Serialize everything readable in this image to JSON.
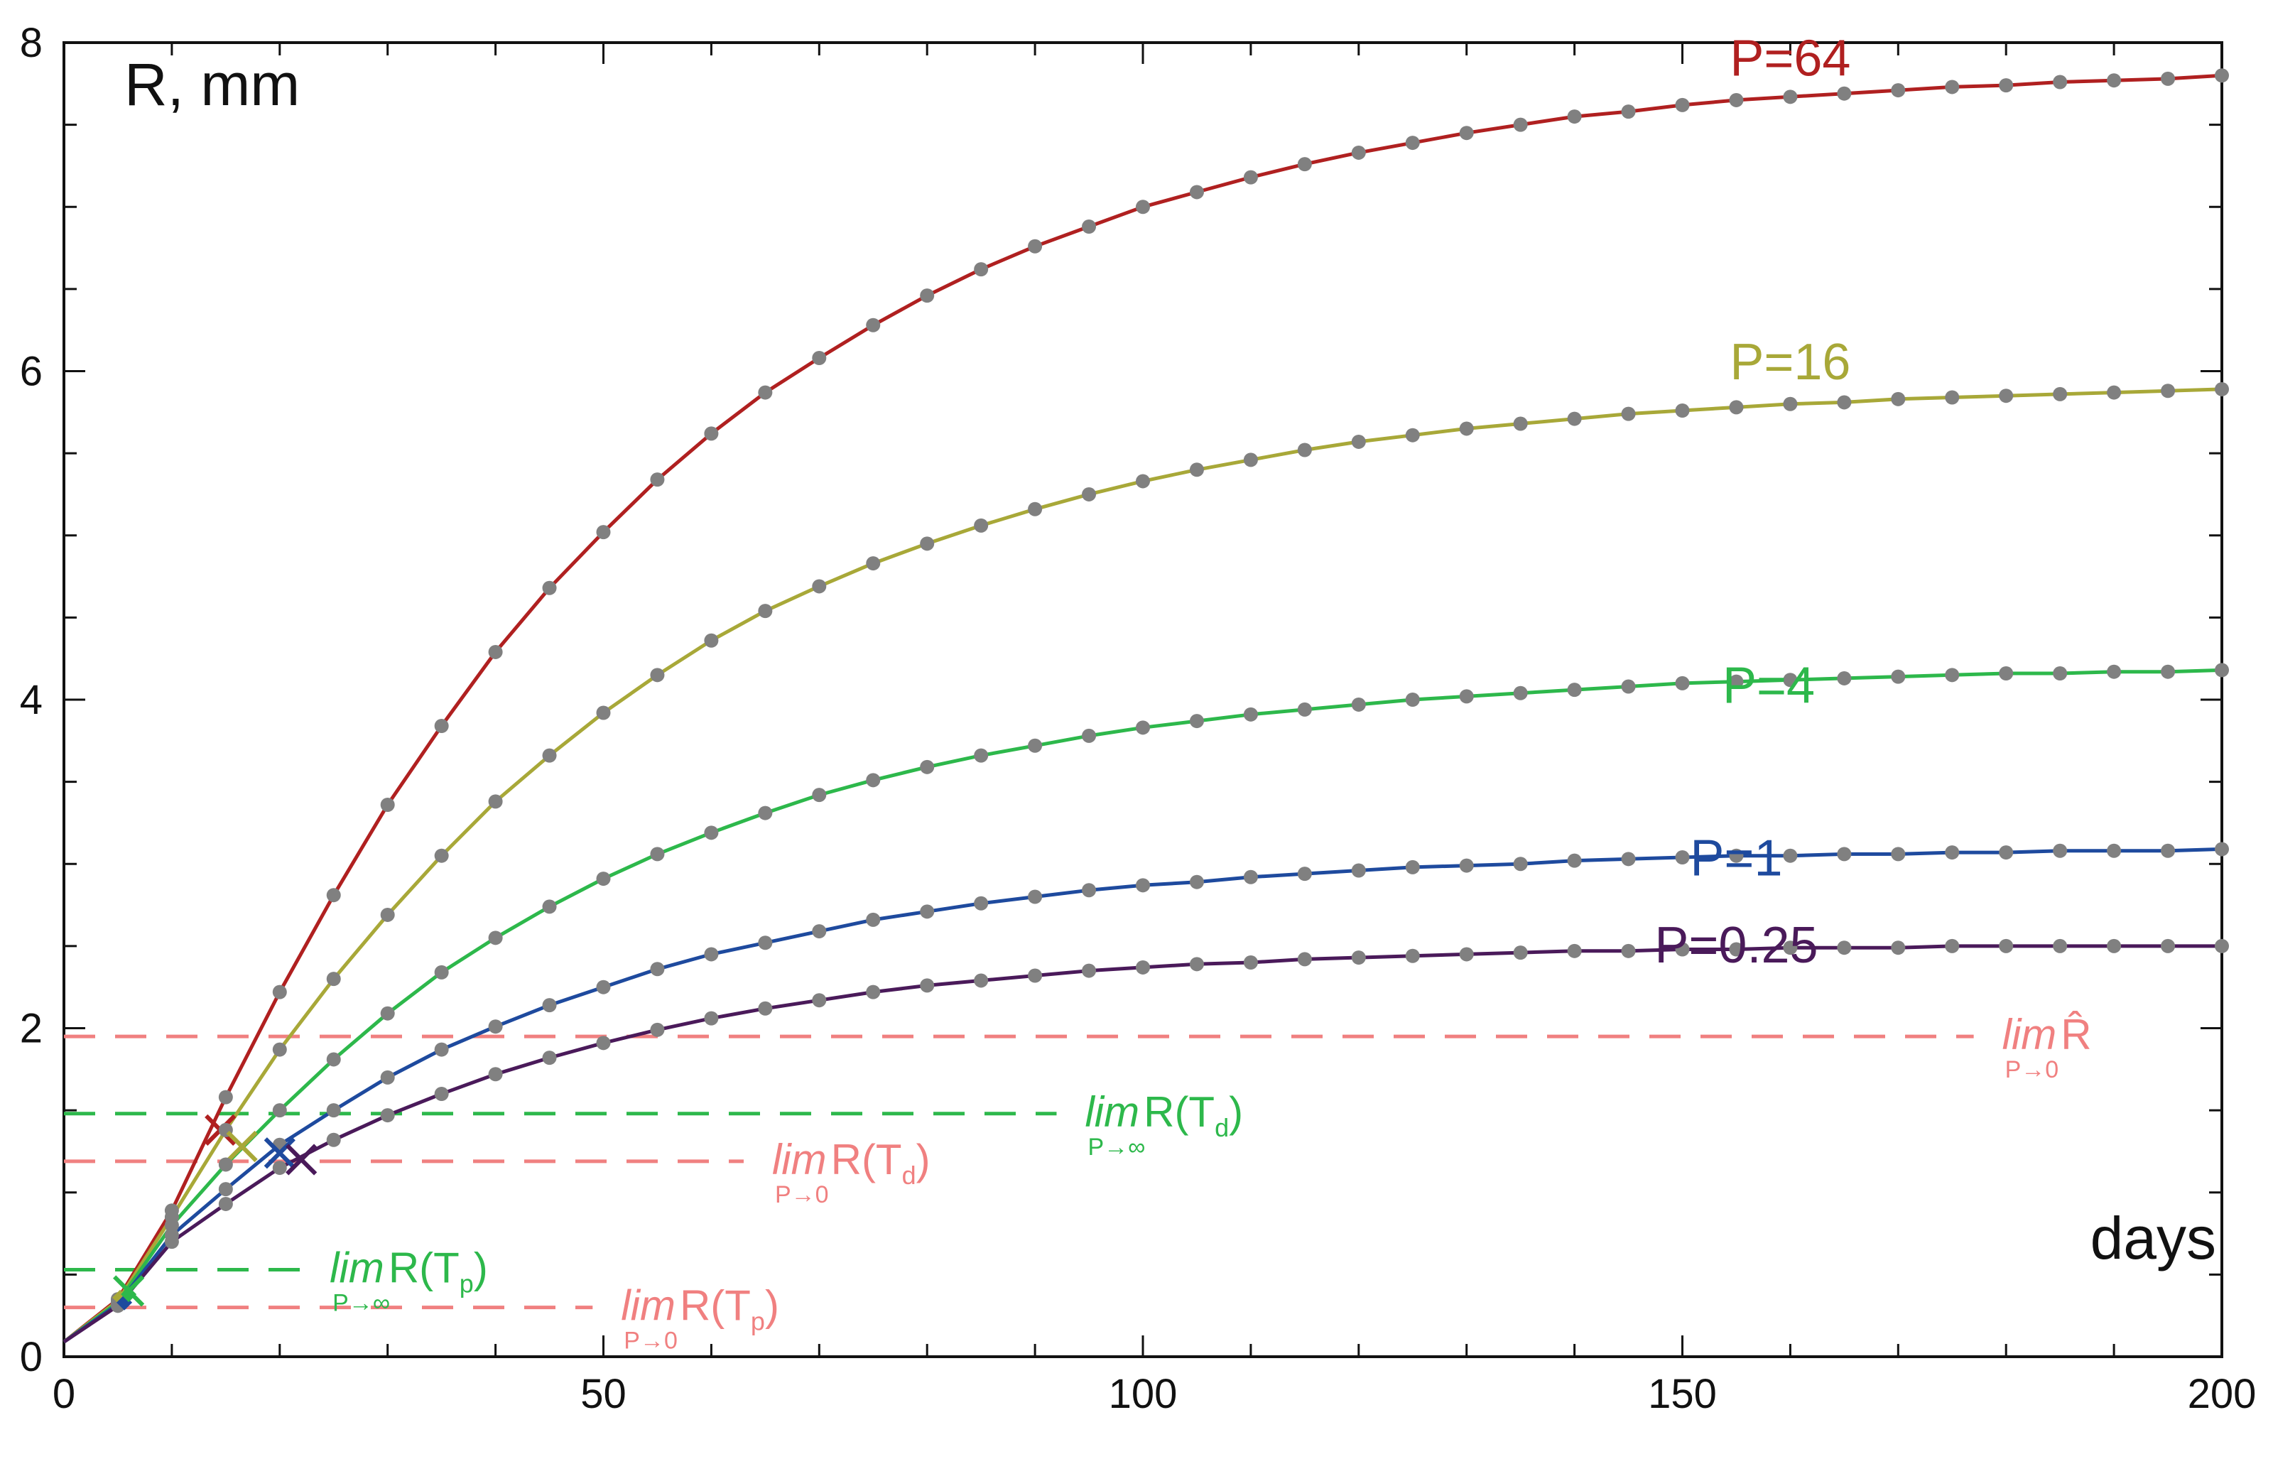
{
  "chart_data": {
    "type": "line",
    "title": "",
    "ylabel": "R, mm",
    "xlabel": "days",
    "xlim": [
      0,
      200
    ],
    "ylim": [
      0,
      8
    ],
    "x_ticks": [
      0,
      50,
      100,
      150,
      200
    ],
    "y_ticks": [
      0,
      2,
      4,
      6,
      8
    ],
    "x_tick_labels": [
      "0",
      "50",
      "100",
      "150",
      "200"
    ],
    "y_tick_labels": [
      "0",
      "2",
      "4",
      "6",
      "8"
    ],
    "marker_color": "#808080",
    "x": [
      0,
      5,
      10,
      15,
      20,
      25,
      30,
      35,
      40,
      45,
      50,
      55,
      60,
      65,
      70,
      75,
      80,
      85,
      90,
      95,
      100,
      105,
      110,
      115,
      120,
      125,
      130,
      135,
      140,
      145,
      150,
      155,
      160,
      165,
      170,
      175,
      180,
      185,
      190,
      195,
      200
    ],
    "series": [
      {
        "name": "P=64",
        "label": "P=64",
        "color": "#b02020",
        "values": [
          0.09,
          0.35,
          0.89,
          1.58,
          2.22,
          2.81,
          3.36,
          3.84,
          4.29,
          4.68,
          5.02,
          5.34,
          5.62,
          5.87,
          6.08,
          6.28,
          6.46,
          6.62,
          6.76,
          6.88,
          7.0,
          7.09,
          7.18,
          7.26,
          7.33,
          7.39,
          7.45,
          7.5,
          7.55,
          7.58,
          7.62,
          7.65,
          7.67,
          7.69,
          7.71,
          7.73,
          7.74,
          7.76,
          7.77,
          7.78,
          7.8
        ],
        "cross": {
          "x": 14.5,
          "y": 1.38
        }
      },
      {
        "name": "P=16",
        "label": "P=16",
        "color": "#a8a838",
        "values": [
          0.09,
          0.34,
          0.85,
          1.38,
          1.87,
          2.3,
          2.69,
          3.05,
          3.38,
          3.66,
          3.92,
          4.15,
          4.36,
          4.54,
          4.69,
          4.83,
          4.95,
          5.06,
          5.16,
          5.25,
          5.33,
          5.4,
          5.46,
          5.52,
          5.57,
          5.61,
          5.65,
          5.68,
          5.71,
          5.74,
          5.76,
          5.78,
          5.8,
          5.81,
          5.83,
          5.84,
          5.85,
          5.86,
          5.87,
          5.88,
          5.89
        ],
        "cross": {
          "x": 16.5,
          "y": 1.28
        }
      },
      {
        "name": "P=4",
        "label": "P=4",
        "color": "#2db84b",
        "values": [
          0.09,
          0.33,
          0.8,
          1.17,
          1.5,
          1.81,
          2.09,
          2.34,
          2.55,
          2.74,
          2.91,
          3.06,
          3.19,
          3.31,
          3.42,
          3.51,
          3.59,
          3.66,
          3.72,
          3.78,
          3.83,
          3.87,
          3.91,
          3.94,
          3.97,
          4.0,
          4.02,
          4.04,
          4.06,
          4.08,
          4.1,
          4.11,
          4.12,
          4.13,
          4.14,
          4.15,
          4.16,
          4.16,
          4.17,
          4.17,
          4.18
        ],
        "cross": {
          "x": 6,
          "y": 0.4
        }
      },
      {
        "name": "P=1",
        "label": "P=1",
        "color": "#1e4a9e",
        "values": [
          0.09,
          0.32,
          0.74,
          1.02,
          1.29,
          1.5,
          1.7,
          1.87,
          2.01,
          2.14,
          2.25,
          2.36,
          2.45,
          2.52,
          2.59,
          2.66,
          2.71,
          2.76,
          2.8,
          2.84,
          2.87,
          2.89,
          2.92,
          2.94,
          2.96,
          2.98,
          2.99,
          3.0,
          3.02,
          3.03,
          3.04,
          3.05,
          3.05,
          3.06,
          3.06,
          3.07,
          3.07,
          3.08,
          3.08,
          3.08,
          3.09
        ],
        "cross": {
          "x": 20,
          "y": 1.24
        }
      },
      {
        "name": "P=0.25",
        "label": "P=0.25",
        "color": "#4a1a5a",
        "values": [
          0.09,
          0.31,
          0.7,
          0.93,
          1.15,
          1.32,
          1.47,
          1.6,
          1.72,
          1.82,
          1.91,
          1.99,
          2.06,
          2.12,
          2.17,
          2.22,
          2.26,
          2.29,
          2.32,
          2.35,
          2.37,
          2.39,
          2.4,
          2.42,
          2.43,
          2.44,
          2.45,
          2.46,
          2.47,
          2.47,
          2.48,
          2.48,
          2.49,
          2.49,
          2.49,
          2.5,
          2.5,
          2.5,
          2.5,
          2.5,
          2.5
        ],
        "cross": {
          "x": 22,
          "y": 1.2
        }
      }
    ],
    "reference_lines": [
      {
        "name": "lim-p0-rhat",
        "y": 1.95,
        "x_end": 177,
        "color": "#f08080",
        "lim": "lim",
        "sub": "P→0",
        "main": "R̂",
        "tsub": ""
      },
      {
        "name": "lim-pinf-td",
        "y": 1.48,
        "x_end": 92,
        "color": "#2db84b",
        "lim": "lim",
        "sub": "P→∞",
        "main": "R(T",
        "tsub": "d",
        "close": ")"
      },
      {
        "name": "lim-p0-td",
        "y": 1.19,
        "x_end": 63,
        "color": "#f08080",
        "lim": "lim",
        "sub": "P→0",
        "main": "R(T",
        "tsub": "d",
        "close": ")"
      },
      {
        "name": "lim-pinf-tp",
        "y": 0.53,
        "x_end": 22,
        "color": "#2db84b",
        "lim": "lim",
        "sub": "P→∞",
        "main": "R(T",
        "tsub": "p",
        "close": ")"
      },
      {
        "name": "lim-p0-tp",
        "y": 0.3,
        "x_end": 49,
        "color": "#f08080",
        "lim": "lim",
        "sub": "P→0",
        "main": "R(T",
        "tsub": "p",
        "close": ")"
      }
    ]
  }
}
